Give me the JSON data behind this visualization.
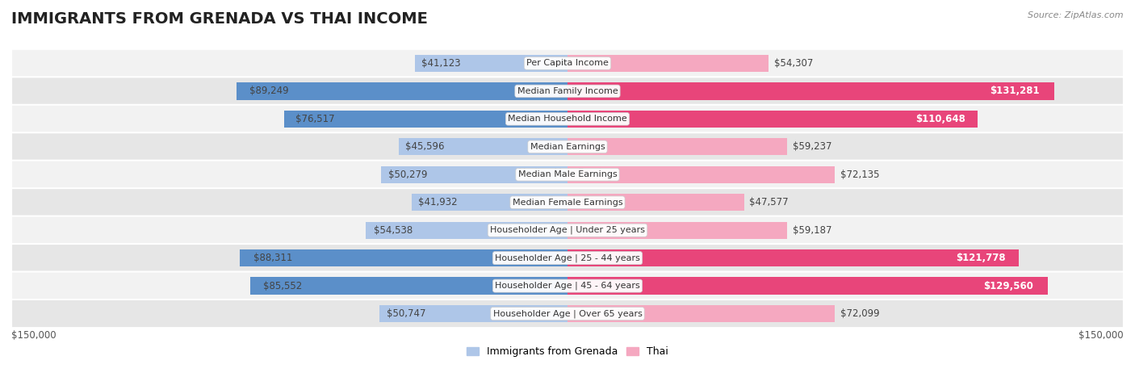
{
  "title": "IMMIGRANTS FROM GRENADA VS THAI INCOME",
  "source": "Source: ZipAtlas.com",
  "categories": [
    "Per Capita Income",
    "Median Family Income",
    "Median Household Income",
    "Median Earnings",
    "Median Male Earnings",
    "Median Female Earnings",
    "Householder Age | Under 25 years",
    "Householder Age | 25 - 44 years",
    "Householder Age | 45 - 64 years",
    "Householder Age | Over 65 years"
  ],
  "grenada_values": [
    41123,
    89249,
    76517,
    45596,
    50279,
    41932,
    54538,
    88311,
    85552,
    50747
  ],
  "thai_values": [
    54307,
    131281,
    110648,
    59237,
    72135,
    47577,
    59187,
    121778,
    129560,
    72099
  ],
  "grenada_labels": [
    "$41,123",
    "$89,249",
    "$76,517",
    "$45,596",
    "$50,279",
    "$41,932",
    "$54,538",
    "$88,311",
    "$85,552",
    "$50,747"
  ],
  "thai_labels": [
    "$54,307",
    "$131,281",
    "$110,648",
    "$59,237",
    "$72,135",
    "$47,577",
    "$59,187",
    "$121,778",
    "$129,560",
    "$72,099"
  ],
  "grenada_color_light": "#aec6e8",
  "grenada_color_dark": "#5b8fc9",
  "thai_color_light": "#f5a8c0",
  "thai_color_dark": "#e8457a",
  "grenada_threshold": 70000,
  "thai_threshold": 100000,
  "row_bg_light": "#f2f2f2",
  "row_bg_dark": "#e6e6e6",
  "max_value": 150000,
  "legend_label_grenada": "Immigrants from Grenada",
  "legend_label_thai": "Thai",
  "xlabel_left": "$150,000",
  "xlabel_right": "$150,000",
  "title_fontsize": 14,
  "bar_height": 0.62,
  "label_fontsize": 8.5,
  "cat_fontsize": 8.0
}
